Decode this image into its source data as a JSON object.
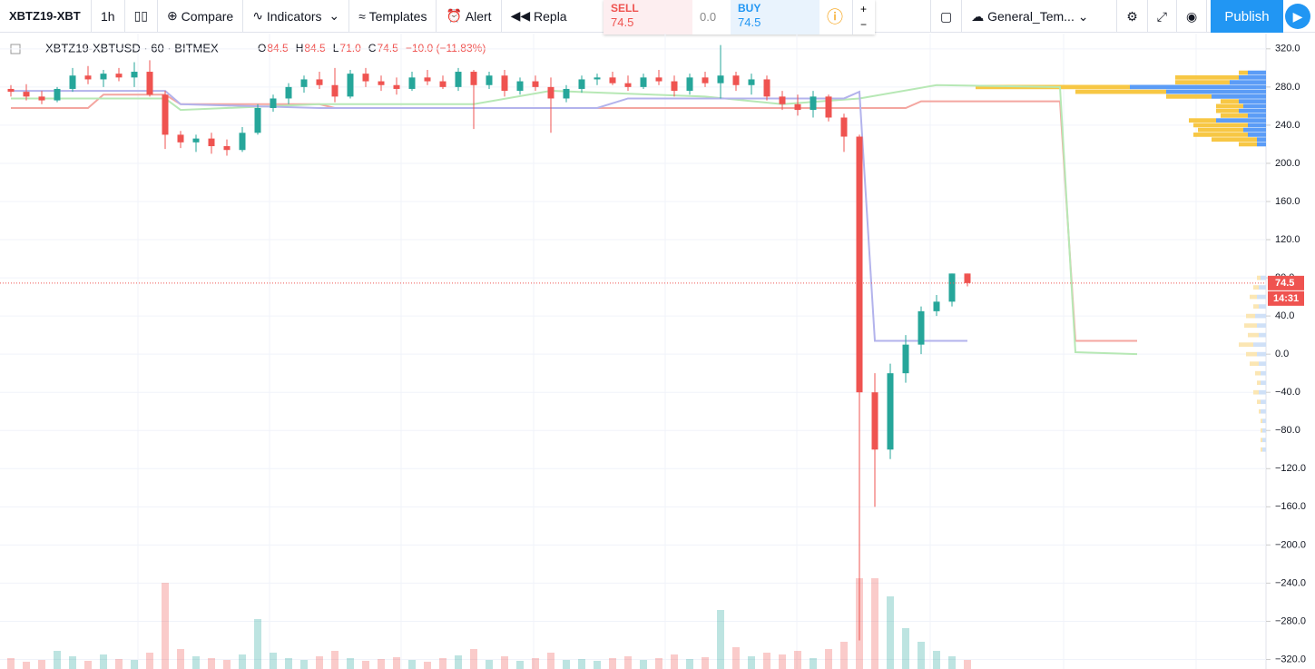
{
  "toolbar": {
    "symbol": "XBTZ19-XBT",
    "interval": "1h",
    "compare": "Compare",
    "indicators": "Indicators",
    "templates": "Templates",
    "alert": "Alert",
    "replay": "Repla",
    "sell_label": "SELL",
    "sell_price": "74.5",
    "spread": "0.0",
    "buy_label": "BUY",
    "buy_price": "74.5",
    "layout": "General_Tem...",
    "publish": "Publish"
  },
  "legend": {
    "symbol": "XBTZ19-XBTUSD · 60 · BITMEX",
    "o_label": "O",
    "o": "84.5",
    "h_label": "H",
    "h": "84.5",
    "l_label": "L",
    "l": "71.0",
    "c_label": "C",
    "c": "74.5",
    "change": "−10.0 (−11.83%)"
  },
  "price_tag": {
    "price": "74.5",
    "countdown": "14:31"
  },
  "chart_data": {
    "type": "candlestick",
    "up_color": "#26a69a",
    "down_color": "#ef5350",
    "grid": true,
    "ylim": [
      -330,
      336
    ],
    "yticks": [
      {
        "value": 320,
        "label": "320.0"
      },
      {
        "value": 280,
        "label": "280.0"
      },
      {
        "value": 240,
        "label": "240.0"
      },
      {
        "value": 200,
        "label": "200.0"
      },
      {
        "value": 160,
        "label": "160.0"
      },
      {
        "value": 120,
        "label": "120.0"
      },
      {
        "value": 80,
        "label": "80.0"
      },
      {
        "value": 40,
        "label": "40.0"
      },
      {
        "value": 0,
        "label": "0.0"
      },
      {
        "value": -40,
        "label": "−40.0"
      },
      {
        "value": -80,
        "label": "−80.0"
      },
      {
        "value": -120,
        "label": "−120.0"
      },
      {
        "value": -160,
        "label": "−160.0"
      },
      {
        "value": -200,
        "label": "−200.0"
      },
      {
        "value": -240,
        "label": "−240.0"
      },
      {
        "value": -280,
        "label": "−280.0"
      },
      {
        "value": -320,
        "label": "−320.0"
      }
    ],
    "candles": {
      "open": [
        278,
        275,
        270,
        266,
        278,
        292,
        288,
        294,
        290,
        296,
        272,
        230,
        222,
        226,
        218,
        214,
        232,
        258,
        268,
        280,
        288,
        282,
        270,
        294,
        286,
        282,
        278,
        290,
        286,
        280,
        296,
        282,
        292,
        276,
        286,
        280,
        268,
        278,
        288,
        290,
        284,
        280,
        290,
        286,
        276,
        290,
        284,
        292,
        282,
        288,
        270,
        262,
        256,
        270,
        248,
        228,
        -40,
        -100,
        -20,
        10,
        45,
        55,
        84.5
      ],
      "high": [
        282,
        283,
        276,
        280,
        300,
        302,
        298,
        300,
        306,
        308,
        276,
        234,
        230,
        232,
        225,
        238,
        262,
        272,
        284,
        292,
        296,
        300,
        298,
        300,
        292,
        290,
        296,
        298,
        292,
        300,
        298,
        296,
        298,
        290,
        292,
        290,
        282,
        292,
        294,
        296,
        292,
        294,
        298,
        292,
        294,
        296,
        324,
        296,
        294,
        292,
        276,
        272,
        276,
        272,
        252,
        230,
        -20,
        -10,
        20,
        50,
        62,
        84.5,
        84.5
      ],
      "low": [
        270,
        266,
        262,
        264,
        275,
        283,
        280,
        286,
        280,
        270,
        215,
        216,
        212,
        210,
        208,
        212,
        230,
        254,
        262,
        274,
        278,
        264,
        268,
        280,
        276,
        272,
        276,
        282,
        278,
        276,
        236,
        278,
        270,
        272,
        276,
        232,
        264,
        274,
        282,
        282,
        276,
        278,
        282,
        270,
        272,
        280,
        268,
        276,
        272,
        266,
        256,
        250,
        248,
        244,
        212,
        -300,
        -160,
        -110,
        -30,
        0,
        40,
        50,
        71
      ],
      "close": [
        275,
        270,
        266,
        278,
        292,
        288,
        294,
        290,
        296,
        272,
        230,
        222,
        226,
        218,
        214,
        232,
        258,
        268,
        280,
        288,
        282,
        270,
        294,
        286,
        282,
        278,
        290,
        286,
        280,
        296,
        282,
        292,
        276,
        286,
        280,
        268,
        278,
        288,
        290,
        284,
        280,
        290,
        286,
        276,
        290,
        284,
        292,
        282,
        288,
        270,
        262,
        256,
        270,
        248,
        228,
        -40,
        -100,
        -20,
        10,
        45,
        55,
        84.5,
        74.5
      ]
    },
    "volume": [
      12,
      8,
      10,
      20,
      14,
      9,
      16,
      11,
      10,
      18,
      95,
      22,
      14,
      12,
      10,
      16,
      55,
      18,
      12,
      10,
      14,
      20,
      12,
      9,
      11,
      13,
      10,
      8,
      12,
      15,
      22,
      10,
      14,
      9,
      12,
      18,
      10,
      11,
      9,
      12,
      14,
      10,
      12,
      16,
      11,
      13,
      65,
      24,
      14,
      18,
      16,
      20,
      12,
      22,
      30,
      100,
      100,
      80,
      45,
      30,
      20,
      14,
      10
    ],
    "lines": [
      {
        "color": "#f4a6a0",
        "x": [
          0,
          5,
          6,
          10,
          11,
          20,
          21,
          58,
          59,
          68,
          69,
          73
        ],
        "values": [
          258,
          258,
          272,
          272,
          262,
          262,
          258,
          258,
          265,
          265,
          14,
          14
        ]
      },
      {
        "color": "#b7e8b5",
        "x": [
          0,
          10,
          11,
          20,
          30,
          35,
          45,
          50,
          55,
          60,
          68,
          69,
          73
        ],
        "values": [
          268,
          268,
          256,
          262,
          262,
          276,
          270,
          262,
          268,
          282,
          280,
          2,
          0
        ]
      },
      {
        "color": "#b3b3ec",
        "x": [
          0,
          10,
          11,
          20,
          38,
          40,
          54,
          55,
          56,
          62
        ],
        "values": [
          276,
          276,
          262,
          258,
          258,
          268,
          268,
          275,
          14,
          14
        ]
      }
    ],
    "volume_profile": [
      {
        "up_color": "#5b9cf6",
        "down_color": "#f7c744",
        "prices": [
          295,
          290,
          285,
          280,
          275,
          270,
          265,
          260,
          255,
          250,
          245,
          240,
          235,
          230,
          225,
          220
        ],
        "up": [
          20,
          30,
          40,
          150,
          110,
          60,
          30,
          25,
          30,
          20,
          55,
          20,
          25,
          20,
          10,
          10
        ],
        "down": [
          10,
          70,
          60,
          170,
          100,
          50,
          20,
          30,
          25,
          30,
          30,
          60,
          50,
          60,
          50,
          20
        ]
      },
      {
        "up_color": "#cfe0f7",
        "down_color": "#fbe6b3",
        "prices": [
          80,
          70,
          60,
          50,
          40,
          30,
          20,
          10,
          0,
          -10,
          -20,
          -30,
          -40,
          -50,
          -60,
          -70,
          -80,
          -90,
          -100
        ],
        "up": [
          6,
          8,
          10,
          8,
          12,
          10,
          8,
          14,
          10,
          8,
          6,
          6,
          8,
          6,
          6,
          4,
          4,
          4,
          4
        ],
        "down": [
          4,
          6,
          8,
          6,
          10,
          14,
          12,
          16,
          12,
          10,
          6,
          4,
          6,
          4,
          2,
          2,
          2,
          2,
          2
        ]
      }
    ]
  }
}
